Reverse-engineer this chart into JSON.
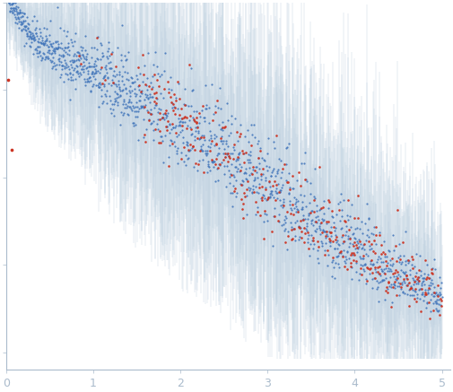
{
  "xlim": [
    0,
    5.1
  ],
  "ylim": [
    -0.05,
    1.0
  ],
  "x_ticks": [
    0,
    1,
    2,
    3,
    4,
    5
  ],
  "background_color": "#ffffff",
  "point_color_blue": "#4477bb",
  "point_color_red": "#cc3322",
  "errorbar_color": "#b8ccdd",
  "spine_color": "#aabbcc",
  "tick_label_color": "#aabbcc",
  "seed": 42
}
